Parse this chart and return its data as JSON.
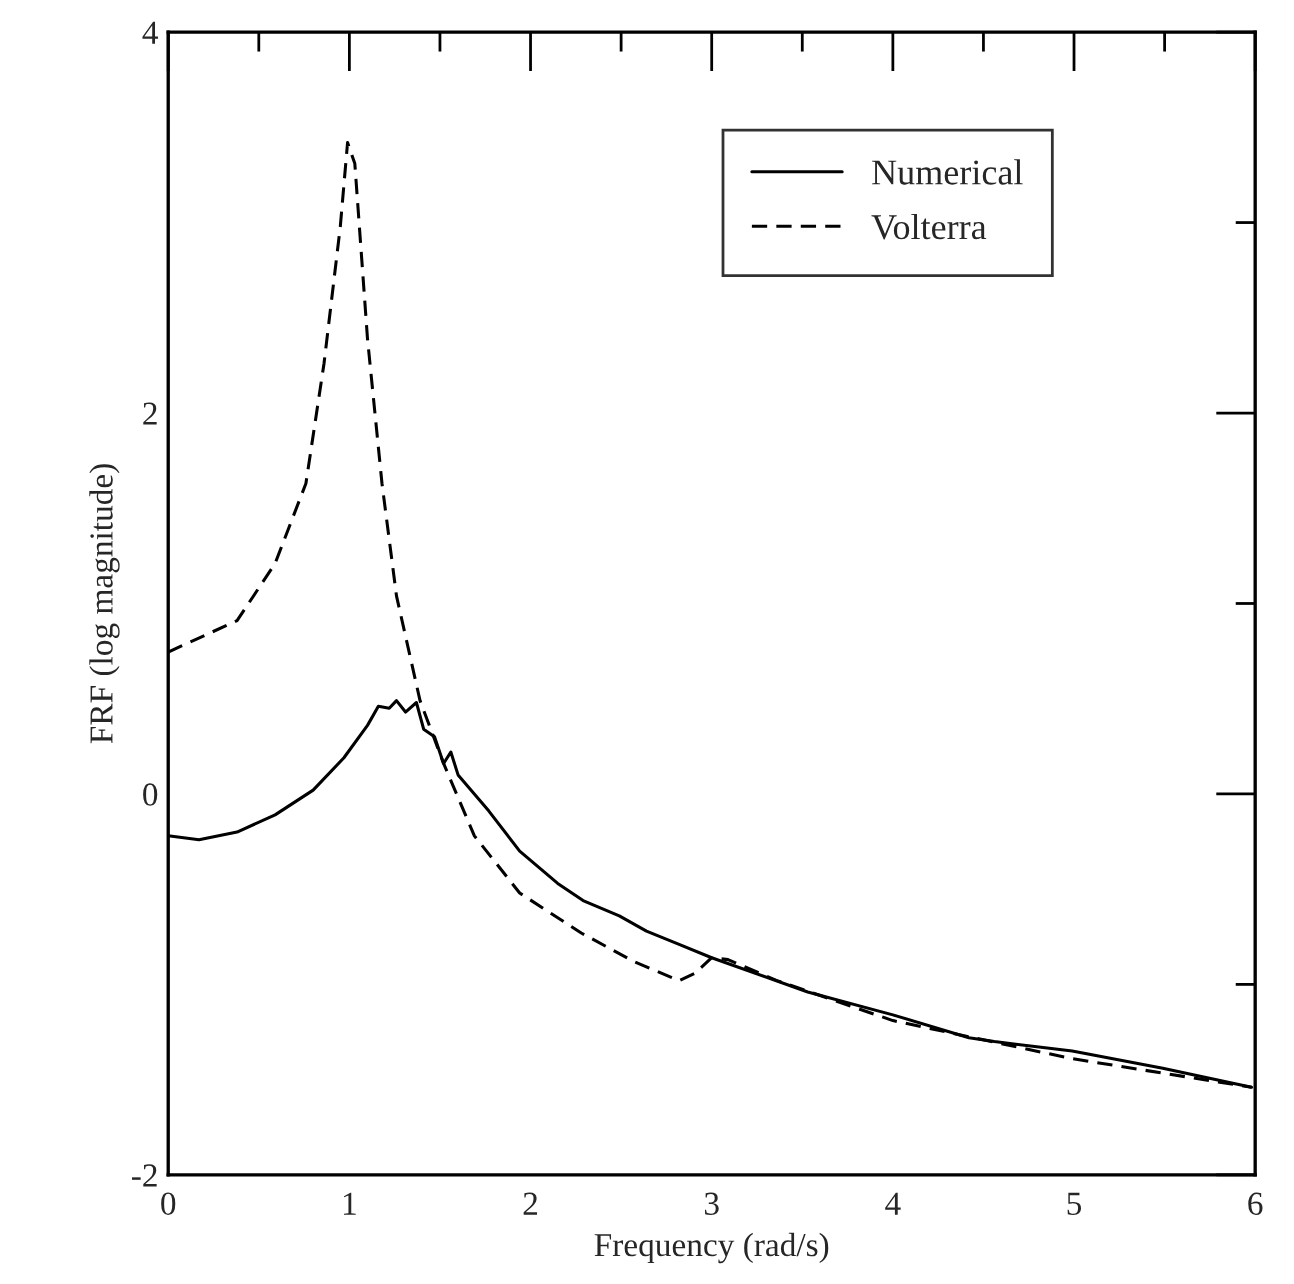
{
  "chart_data": {
    "type": "line",
    "xlabel": "Frequency (rad/s)",
    "ylabel": "FRF (log magnitude)",
    "xlim": [
      0,
      6
    ],
    "ylim": [
      -2,
      4
    ],
    "xticks": [
      0,
      {
        "value": 0.5,
        "label": null
      },
      1,
      {
        "value": 1.5,
        "label": null
      },
      2,
      {
        "value": 2.5,
        "label": null
      },
      3,
      {
        "value": 3.5,
        "label": null
      },
      4,
      {
        "value": 4.5,
        "label": null
      },
      5,
      {
        "value": 5.5,
        "label": null
      },
      6
    ],
    "yticks": [
      -2,
      {
        "value": -1,
        "label": null
      },
      0,
      {
        "value": 1,
        "label": null
      },
      2,
      {
        "value": 3,
        "label": null
      },
      4
    ],
    "grid": false,
    "legend": "top right",
    "series": [
      {
        "name": "Numerical",
        "color": "#000000",
        "line_style": "solid",
        "x": [
          0,
          0.17,
          0.38,
          0.59,
          0.8,
          0.97,
          1.1,
          1.16,
          1.22,
          1.26,
          1.31,
          1.37,
          1.41,
          1.47,
          1.52,
          1.56,
          1.6,
          1.77,
          1.94,
          2.15,
          2.29,
          2.49,
          2.64,
          2.82,
          3.0,
          3.53,
          4.0,
          4.42,
          4.56,
          4.99,
          5.49,
          5.98
        ],
        "values": [
          -0.22,
          -0.24,
          -0.2,
          -0.11,
          0.02,
          0.19,
          0.36,
          0.46,
          0.45,
          0.49,
          0.43,
          0.48,
          0.34,
          0.3,
          0.16,
          0.22,
          0.1,
          -0.09,
          -0.3,
          -0.47,
          -0.56,
          -0.64,
          -0.72,
          -0.79,
          -0.86,
          -1.04,
          -1.16,
          -1.28,
          -1.3,
          -1.35,
          -1.44,
          -1.54
        ]
      },
      {
        "name": "Volterra",
        "color": "#000000",
        "line_style": "dashed",
        "x": [
          0,
          0.38,
          0.59,
          0.76,
          0.86,
          0.95,
          0.99,
          1.03,
          1.1,
          1.18,
          1.26,
          1.39,
          1.52,
          1.69,
          1.94,
          2.28,
          2.57,
          2.82,
          2.91,
          3.0,
          3.09,
          3.36,
          4.0,
          4.99,
          5.98
        ],
        "values": [
          0.745,
          0.91,
          1.21,
          1.63,
          2.26,
          2.98,
          3.42,
          3.31,
          2.39,
          1.63,
          1.04,
          0.49,
          0.16,
          -0.22,
          -0.52,
          -0.73,
          -0.88,
          -0.98,
          -0.94,
          -0.86,
          -0.87,
          -0.98,
          -1.19,
          -1.39,
          -1.54
        ]
      }
    ]
  }
}
